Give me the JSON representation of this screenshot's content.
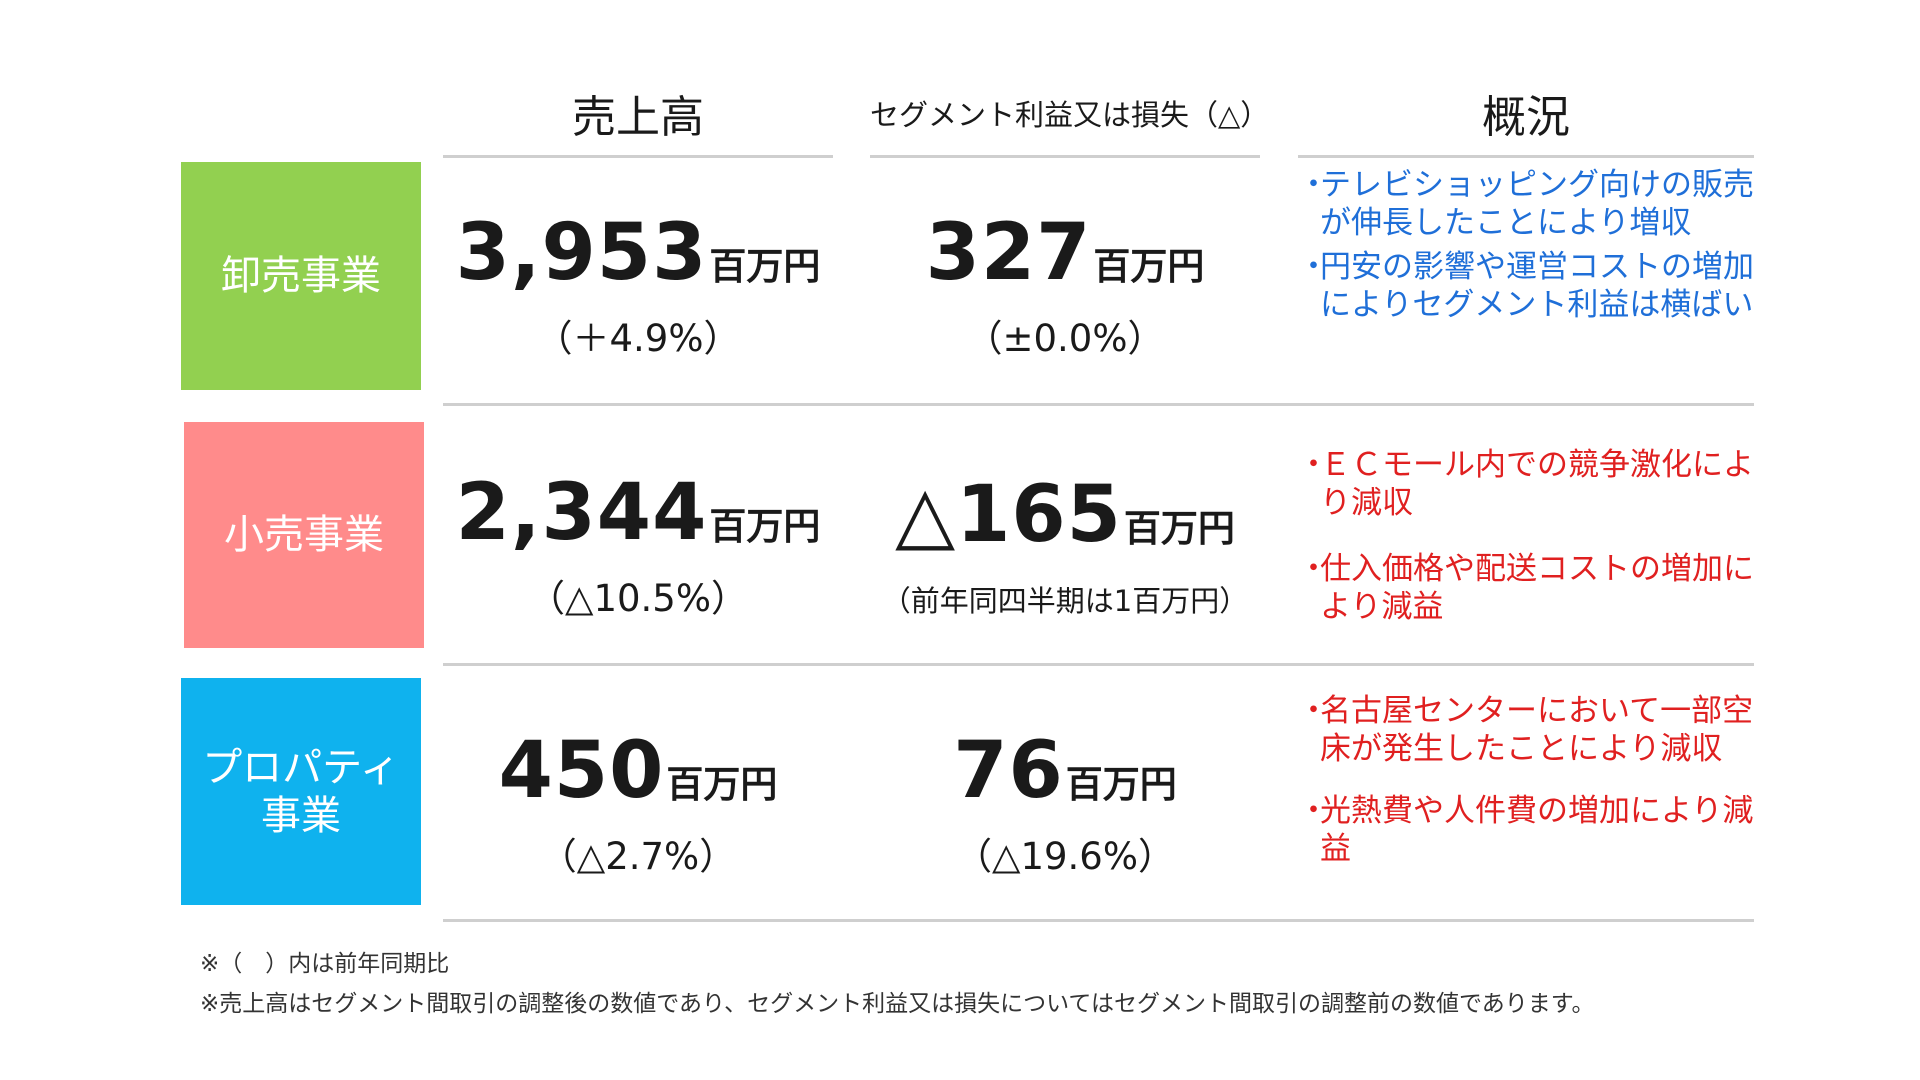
{
  "headers": {
    "sales": "売上高",
    "profit": "セグメント利益又は損失（△）",
    "overview": "概況"
  },
  "colors": {
    "wholesale": "#92d050",
    "retail": "#ff8b8b",
    "property": "#0fb2ee",
    "overview_blue": "#1f6fd8",
    "overview_red": "#e02020"
  },
  "segments": [
    {
      "name": "卸売事業",
      "sales_value": "3,953",
      "sales_unit": "百万円",
      "sales_change": "（＋4.9%）",
      "profit_value": "327",
      "profit_unit": "百万円",
      "profit_change": "（±0.0%）",
      "overview": [
        "テレビショッピング向けの販売が伸長したことにより増収",
        "円安の影響や運営コストの増加によりセグメント利益は横ばい"
      ]
    },
    {
      "name": "小売事業",
      "sales_value": "2,344",
      "sales_unit": "百万円",
      "sales_change": "（△10.5%）",
      "profit_value": "△165",
      "profit_unit": "百万円",
      "profit_change": "（前年同四半期は1百万円）",
      "overview": [
        "ＥＣモール内での競争激化により減収",
        "仕入価格や配送コストの増加により減益"
      ]
    },
    {
      "name": "プロパティ\n事業",
      "sales_value": "450",
      "sales_unit": "百万円",
      "sales_change": "（△2.7%）",
      "profit_value": "76",
      "profit_unit": "百万円",
      "profit_change": "（△19.6%）",
      "overview": [
        "名古屋センターにおいて一部空床が発生したことにより減収",
        "光熱費や人件費の増加により減益"
      ]
    }
  ],
  "bullet_char": "・",
  "notes": [
    "※（　）内は前年同期比",
    "※売上高はセグメント間取引の調整後の数値であり、セグメント利益又は損失についてはセグメント間取引の調整前の数値であります。"
  ]
}
